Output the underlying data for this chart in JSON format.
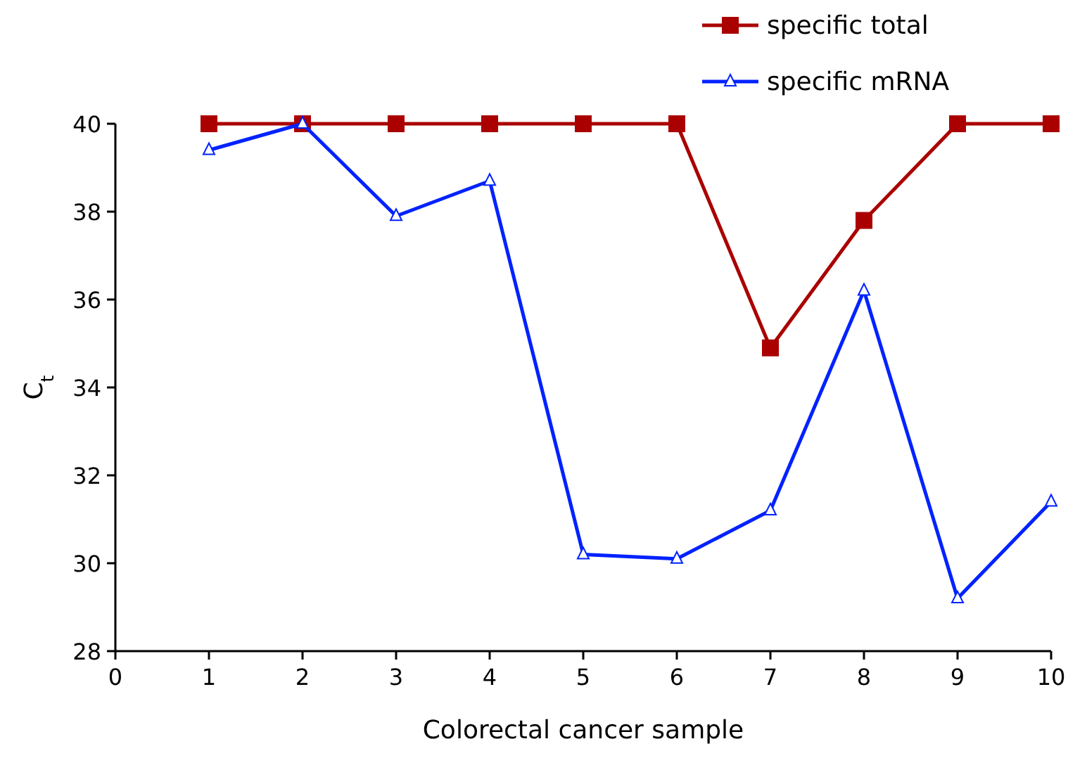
{
  "chart_data": {
    "type": "line",
    "xlabel": "Colorectal cancer sample",
    "ylabel": "C$_{t}$",
    "x": [
      1,
      2,
      3,
      4,
      5,
      6,
      7,
      8,
      9,
      10
    ],
    "xlim": [
      0,
      10
    ],
    "xticks": [
      0,
      1,
      2,
      3,
      4,
      5,
      6,
      7,
      8,
      9,
      10
    ],
    "ylim": [
      28,
      40
    ],
    "yticks": [
      28,
      30,
      32,
      34,
      36,
      38,
      40
    ],
    "legend": "top right",
    "grid": false,
    "series": [
      {
        "name": "specific total",
        "color": "#aa0000",
        "marker": "square",
        "values": [
          40,
          40,
          40,
          40,
          40,
          40,
          34.9,
          37.8,
          40,
          40
        ]
      },
      {
        "name": "specific mRNA",
        "color": "#0022ff",
        "marker": "triangle",
        "values": [
          39.4,
          40,
          37.9,
          38.7,
          30.2,
          30.1,
          31.2,
          36.2,
          29.2,
          31.4
        ]
      }
    ]
  }
}
